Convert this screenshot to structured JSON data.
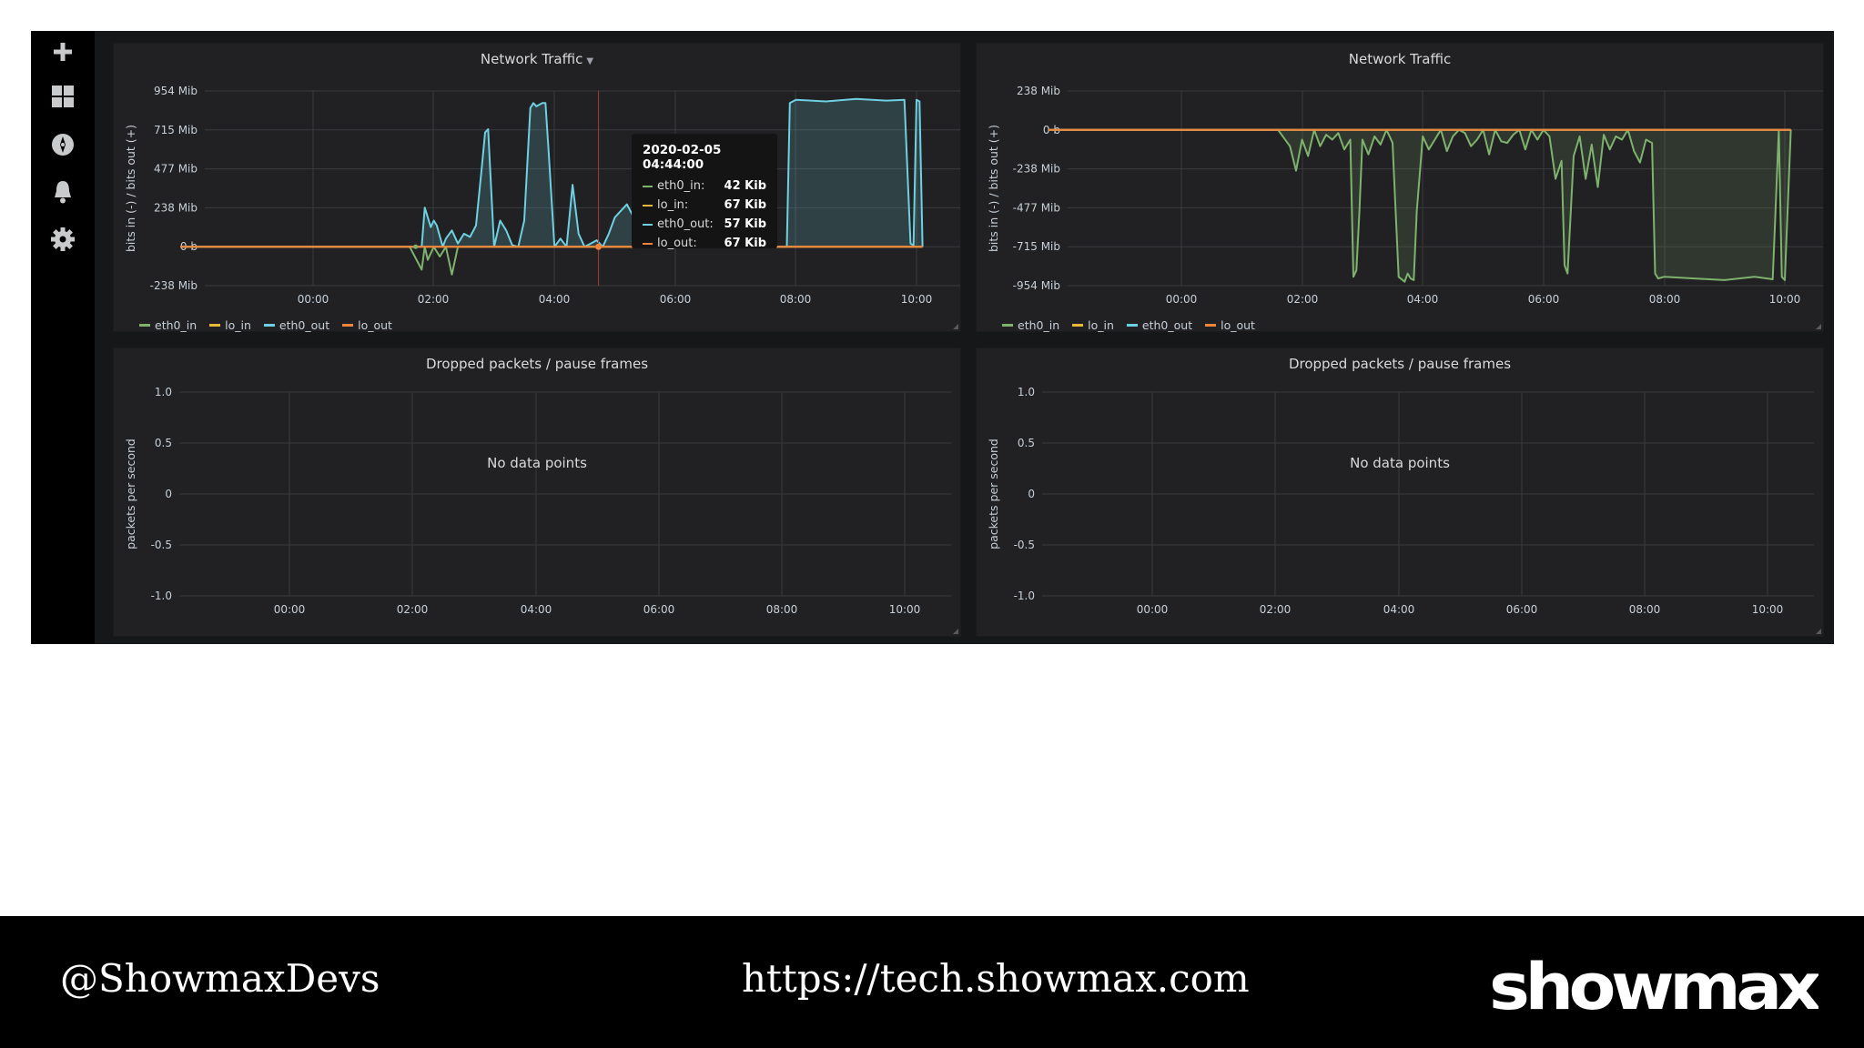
{
  "colors": {
    "eth0_in": "#7eb26d",
    "lo_in": "#eab839",
    "eth0_out": "#6ed0e0",
    "lo_out": "#ef843c",
    "grid": "#3a3b3e",
    "panel_bg": "#212124"
  },
  "sidebar": {
    "icons": [
      "plus-icon",
      "dashboards-icon",
      "explore-icon",
      "alerting-bell-icon",
      "configuration-gear-icon"
    ]
  },
  "panels": {
    "traffic_left": {
      "title": "Network Traffic",
      "ylabel": "bits in (-) / bits out (+)",
      "legend": [
        "eth0_in",
        "lo_in",
        "eth0_out",
        "lo_out"
      ]
    },
    "traffic_right": {
      "title": "Network Traffic",
      "ylabel": "bits in (-) / bits out (+)",
      "legend": [
        "eth0_in",
        "lo_in",
        "eth0_out",
        "lo_out"
      ]
    },
    "dropped_left": {
      "title": "Dropped packets / pause frames",
      "ylabel": "packets per second",
      "y2label": "packets per second",
      "nodata": "No data points"
    },
    "dropped_right": {
      "title": "Dropped packets / pause frames",
      "ylabel": "packets per second",
      "y2label": "packets per second",
      "nodata": "No data points"
    }
  },
  "tooltip": {
    "time": "2020-02-05 04:44:00",
    "rows": [
      {
        "name": "eth0_in:",
        "value": "42 Kib"
      },
      {
        "name": "lo_in:",
        "value": "67 Kib"
      },
      {
        "name": "eth0_out:",
        "value": "57 Kib"
      },
      {
        "name": "lo_out:",
        "value": "67 Kib"
      }
    ]
  },
  "chart_data": [
    {
      "type": "line",
      "title": "Network Traffic",
      "ylabel": "bits in (-) / bits out (+)",
      "y_ticks": [
        "954 Mib",
        "715 Mib",
        "477 Mib",
        "238 Mib",
        "0 b",
        "-238 Mib"
      ],
      "ylim": [
        -238,
        954
      ],
      "y_unit": "Mib",
      "x_ticks": [
        "00:00",
        "02:00",
        "04:00",
        "06:00",
        "08:00",
        "10:00"
      ],
      "xlim": [
        -2.2,
        10.1
      ],
      "series": [
        {
          "name": "eth0_out",
          "x": [
            -2.2,
            1.8,
            1.85,
            1.95,
            2.0,
            2.05,
            2.15,
            2.2,
            2.3,
            2.4,
            2.5,
            2.6,
            2.7,
            2.8,
            2.85,
            2.9,
            3.0,
            3.1,
            3.2,
            3.3,
            3.4,
            3.5,
            3.6,
            3.65,
            3.7,
            3.8,
            3.85,
            3.9,
            4.0,
            4.1,
            4.2,
            4.3,
            4.4,
            4.5,
            4.6,
            4.7,
            4.8,
            4.9,
            5.0,
            5.1,
            5.2,
            5.3,
            5.4,
            5.5,
            5.6,
            5.7,
            5.8,
            5.9,
            6.0,
            6.1,
            6.2,
            6.3,
            6.4,
            6.5,
            6.6,
            6.7,
            6.8,
            6.9,
            7.0,
            7.1,
            7.2,
            7.3,
            7.4,
            7.5,
            7.6,
            7.7,
            7.8,
            7.85,
            7.9,
            8.0,
            8.5,
            9.0,
            9.5,
            9.8,
            9.9,
            9.95,
            10.0,
            10.05,
            10.1
          ],
          "y": [
            0,
            0,
            240,
            120,
            160,
            130,
            0,
            50,
            100,
            20,
            80,
            60,
            130,
            500,
            700,
            720,
            0,
            160,
            100,
            10,
            0,
            160,
            850,
            880,
            860,
            880,
            880,
            600,
            0,
            50,
            0,
            380,
            80,
            0,
            20,
            40,
            0,
            80,
            180,
            220,
            260,
            190,
            0,
            0,
            0,
            0,
            0,
            0,
            0,
            0,
            0,
            0,
            0,
            0,
            0,
            0,
            0,
            0,
            0,
            0,
            0,
            0,
            0,
            0,
            0,
            0,
            0,
            0,
            880,
            900,
            890,
            905,
            895,
            900,
            20,
            10,
            900,
            890,
            0
          ]
        },
        {
          "name": "eth0_in",
          "x": [
            -2.2,
            1.6,
            1.8,
            1.85,
            1.9,
            2.0,
            2.1,
            2.2,
            2.3,
            2.4,
            10.1
          ],
          "y": [
            0,
            0,
            -140,
            0,
            -80,
            0,
            -60,
            0,
            -170,
            0,
            0
          ]
        },
        {
          "name": "lo_in",
          "x": [
            -2.2,
            10.1
          ],
          "y": [
            0,
            0
          ]
        },
        {
          "name": "lo_out",
          "x": [
            -2.2,
            10.1
          ],
          "y": [
            0,
            0
          ]
        }
      ]
    },
    {
      "type": "line",
      "title": "Network Traffic",
      "ylabel": "bits in (-) / bits out (+)",
      "y_ticks": [
        "238 Mib",
        "0 b",
        "-238 Mib",
        "-477 Mib",
        "-715 Mib",
        "-954 Mib"
      ],
      "ylim": [
        -954,
        238
      ],
      "y_unit": "Mib",
      "x_ticks": [
        "00:00",
        "02:00",
        "04:00",
        "06:00",
        "08:00",
        "10:00"
      ],
      "xlim": [
        -2.2,
        10.1
      ],
      "series": [
        {
          "name": "eth0_in",
          "x": [
            -2.2,
            1.6,
            1.8,
            1.9,
            2.0,
            2.1,
            2.2,
            2.3,
            2.4,
            2.5,
            2.6,
            2.7,
            2.8,
            2.85,
            2.9,
            2.95,
            3.0,
            3.1,
            3.2,
            3.3,
            3.4,
            3.5,
            3.6,
            3.7,
            3.75,
            3.8,
            3.85,
            3.9,
            4.0,
            4.1,
            4.2,
            4.3,
            4.4,
            4.5,
            4.6,
            4.7,
            4.8,
            4.9,
            5.0,
            5.1,
            5.2,
            5.3,
            5.4,
            5.5,
            5.6,
            5.7,
            5.8,
            5.9,
            6.0,
            6.1,
            6.2,
            6.3,
            6.35,
            6.4,
            6.5,
            6.6,
            6.7,
            6.8,
            6.9,
            7.0,
            7.1,
            7.2,
            7.3,
            7.4,
            7.5,
            7.6,
            7.7,
            7.8,
            7.85,
            7.9,
            8.0,
            8.5,
            9.0,
            9.5,
            9.8,
            9.9,
            9.95,
            10.0,
            10.1
          ],
          "y": [
            0,
            0,
            -100,
            -250,
            -60,
            -160,
            0,
            -100,
            -30,
            -60,
            -20,
            -120,
            -60,
            -900,
            -860,
            -500,
            -60,
            -150,
            -40,
            -90,
            0,
            -80,
            -900,
            -930,
            -880,
            -910,
            -920,
            -500,
            -40,
            -120,
            -60,
            0,
            -130,
            -40,
            0,
            -20,
            -100,
            -60,
            0,
            -150,
            0,
            -70,
            -80,
            -30,
            0,
            -120,
            0,
            -60,
            0,
            -40,
            -300,
            -190,
            -830,
            -880,
            -160,
            -40,
            -300,
            -90,
            -350,
            -30,
            -120,
            -40,
            -60,
            0,
            -130,
            -200,
            -60,
            -80,
            -880,
            -910,
            -900,
            -910,
            -920,
            -900,
            -915,
            0,
            -900,
            -920,
            0
          ]
        },
        {
          "name": "eth0_out",
          "x": [
            -2.2,
            10.1
          ],
          "y": [
            0,
            0
          ]
        },
        {
          "name": "lo_in",
          "x": [
            -2.2,
            10.1
          ],
          "y": [
            0,
            0
          ]
        },
        {
          "name": "lo_out",
          "x": [
            -2.2,
            10.1
          ],
          "y": [
            0,
            0
          ]
        }
      ]
    },
    {
      "type": "line",
      "title": "Dropped packets / pause frames",
      "ylabel": "packets per second",
      "y2label": "packets per second",
      "y_ticks": [
        "1.0",
        "0.5",
        "0",
        "-0.5",
        "-1.0"
      ],
      "ylim": [
        -1,
        1
      ],
      "x_ticks": [
        "00:00",
        "02:00",
        "04:00",
        "06:00",
        "08:00",
        "10:00"
      ],
      "series": []
    },
    {
      "type": "line",
      "title": "Dropped packets / pause frames",
      "ylabel": "packets per second",
      "y2label": "packets per second",
      "y_ticks": [
        "1.0",
        "0.5",
        "0",
        "-0.5",
        "-1.0"
      ],
      "ylim": [
        -1,
        1
      ],
      "x_ticks": [
        "00:00",
        "02:00",
        "04:00",
        "06:00",
        "08:00",
        "10:00"
      ],
      "series": []
    }
  ],
  "footer": {
    "handle": "@ShowmaxDevs",
    "url": "https://tech.showmax.com",
    "logo_text": "showmax"
  }
}
